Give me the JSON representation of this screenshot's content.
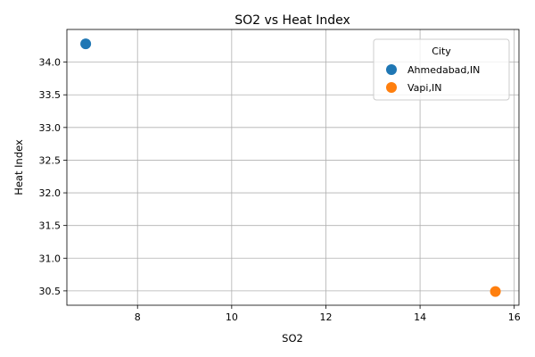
{
  "chart_data": {
    "type": "scatter",
    "title": "SO2 vs Heat Index",
    "xlabel": "SO2",
    "ylabel": "Heat Index",
    "xlim": [
      6.5,
      16.1
    ],
    "ylim": [
      30.28,
      34.5
    ],
    "xticks": [
      8,
      10,
      12,
      14,
      16
    ],
    "xtick_labels": [
      "8",
      "10",
      "12",
      "14",
      "16"
    ],
    "yticks": [
      30.5,
      31.0,
      31.5,
      32.0,
      32.5,
      33.0,
      33.5,
      34.0
    ],
    "ytick_labels": [
      "30.5",
      "31.0",
      "31.5",
      "32.0",
      "32.5",
      "33.0",
      "33.5",
      "34.0"
    ],
    "grid": true,
    "legend": {
      "title": "City",
      "placement": "top-right"
    },
    "series": [
      {
        "name": "Ahmedabad,IN",
        "color": "#1f77b4",
        "points": [
          {
            "x": 6.9,
            "y": 34.28
          }
        ]
      },
      {
        "name": "Vapi,IN",
        "color": "#ff7f0e",
        "points": [
          {
            "x": 15.6,
            "y": 30.49
          }
        ]
      }
    ]
  }
}
